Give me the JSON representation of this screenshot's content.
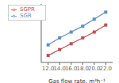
{
  "chart_data": {
    "type": "line",
    "x": [
      12.0,
      14.0,
      16.0,
      18.0,
      20.0,
      22.0
    ],
    "series": [
      {
        "name": "SGR",
        "color": "#5B8FC9",
        "marker": "square",
        "values": [
          0.38,
          0.5,
          0.6,
          0.7,
          0.82,
          0.94
        ]
      },
      {
        "name": "SGPR",
        "color": "#C0504D",
        "marker": "square",
        "values": [
          0.2,
          0.3,
          0.4,
          0.5,
          0.6,
          0.72
        ]
      }
    ],
    "xlabel": "Gas flow rate, m³h⁻¹",
    "xlim": [
      10.8,
      23.2
    ],
    "ylim": [
      0.08,
      1.08
    ],
    "xticks": [
      {
        "value": 12,
        "label": "12.0"
      },
      {
        "value": 14,
        "label": "14.0"
      },
      {
        "value": 16,
        "label": "16.0"
      },
      {
        "value": 18,
        "label": "18.0"
      },
      {
        "value": 20,
        "label": "20.0"
      },
      {
        "value": 22,
        "label": "22.0"
      }
    ],
    "yticks": [],
    "tick_labels": "x",
    "legend": "upper left",
    "grid": false
  }
}
